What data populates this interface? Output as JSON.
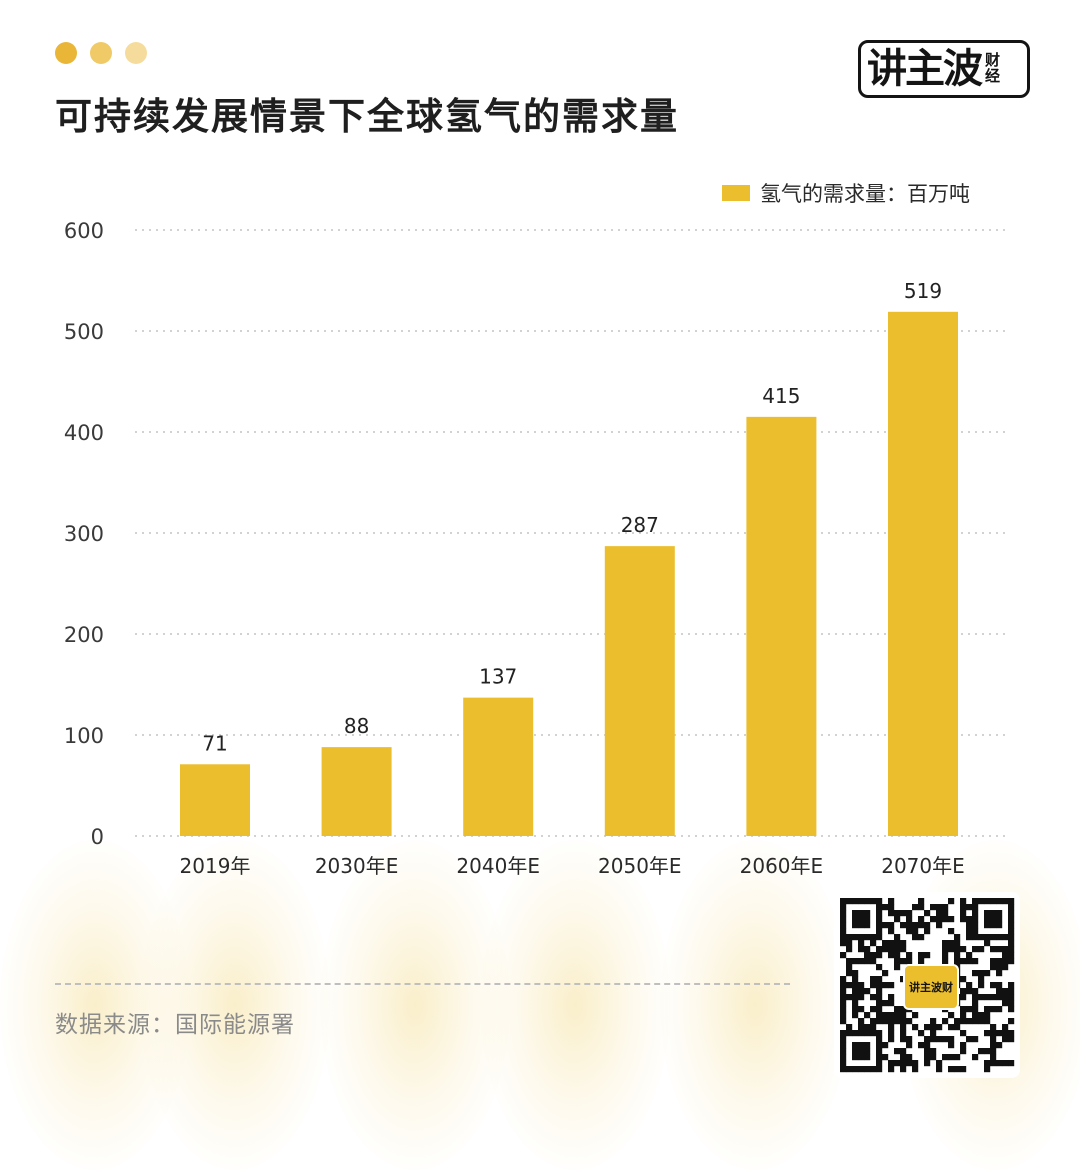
{
  "header": {
    "title": "可持续发展情景下全球氢气的需求量",
    "logo_main": "讲主波",
    "logo_sub": "财经"
  },
  "colors": {
    "bar": "#ebbe2e",
    "dot1": "#e9b637",
    "dot2": "#f0ca66",
    "dot3": "#f6dc9c"
  },
  "chart_data": {
    "type": "bar",
    "categories": [
      "2019年",
      "2030年E",
      "2040年E",
      "2050年E",
      "2060年E",
      "2070年E"
    ],
    "series": [
      {
        "name": "氢气的需求量：百万吨",
        "values": [
          71,
          88,
          137,
          287,
          415,
          519
        ]
      }
    ],
    "ylim": [
      0,
      600
    ],
    "yticks": [
      0,
      100,
      200,
      300,
      400,
      500,
      600
    ],
    "grid": true,
    "legend_position": "top-right",
    "data_labels": true
  },
  "footer": {
    "source": "数据来源：国际能源署",
    "qr_badge": "讲主波财"
  }
}
